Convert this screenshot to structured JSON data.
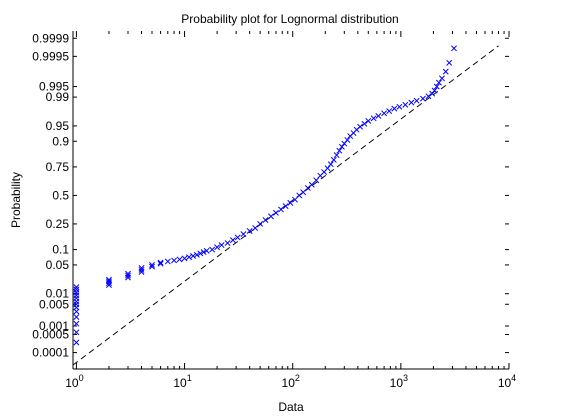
{
  "chart_data": {
    "type": "scatter",
    "title": "Probability plot for Lognormal distribution",
    "xlabel": "Data",
    "ylabel": "Probability",
    "x_scale": "log",
    "y_scale": "normal-probability",
    "xlim": [
      0.93,
      10000
    ],
    "ylim": [
      2e-05,
      0.99995
    ],
    "grid": false,
    "marker": "x",
    "marker_color": "#0000ff",
    "reference_line_color": "#000000",
    "reference_line_style": "dashed",
    "x_tick_labels": [
      {
        "value": 1,
        "base": "10",
        "exp": "0"
      },
      {
        "value": 10,
        "base": "10",
        "exp": "1"
      },
      {
        "value": 100,
        "base": "10",
        "exp": "2"
      },
      {
        "value": 1000,
        "base": "10",
        "exp": "3"
      },
      {
        "value": 10000,
        "base": "10",
        "exp": "4"
      }
    ],
    "y_ticks": [
      0.0001,
      0.0005,
      0.001,
      0.005,
      0.01,
      0.05,
      0.1,
      0.25,
      0.5,
      0.75,
      0.9,
      0.95,
      0.99,
      0.995,
      0.9995,
      0.9999
    ],
    "y_tick_labels": [
      "0.0001",
      "0.0005",
      "0.001",
      "0.005",
      "0.01",
      "0.05",
      "0.1",
      "0.25",
      "0.5",
      "0.75",
      "0.9",
      "0.95",
      "0.99",
      "0.995",
      "0.9995",
      "0.9999"
    ],
    "reference_line": [
      [
        0.93,
        3e-05
      ],
      [
        8000,
        0.9998
      ]
    ],
    "points": [
      [
        1.0,
        0.00025
      ],
      [
        1.0,
        0.0006
      ],
      [
        1.0,
        0.0012
      ],
      [
        1.0,
        0.002
      ],
      [
        1.0,
        0.003
      ],
      [
        1.0,
        0.004
      ],
      [
        1.0,
        0.005
      ],
      [
        1.0,
        0.006
      ],
      [
        1.0,
        0.0075
      ],
      [
        1.0,
        0.009
      ],
      [
        1.0,
        0.011
      ],
      [
        1.0,
        0.013
      ],
      [
        1.0,
        0.015
      ],
      [
        2.0,
        0.017
      ],
      [
        2.0,
        0.019
      ],
      [
        2.0,
        0.021
      ],
      [
        2.0,
        0.023
      ],
      [
        3.0,
        0.026
      ],
      [
        3.0,
        0.029
      ],
      [
        3.0,
        0.032
      ],
      [
        4.0,
        0.035
      ],
      [
        4.0,
        0.039
      ],
      [
        4.0,
        0.043
      ],
      [
        5.0,
        0.046
      ],
      [
        5.0,
        0.05
      ],
      [
        6.0,
        0.053
      ],
      [
        6.0,
        0.056
      ],
      [
        7.0,
        0.059
      ],
      [
        8.0,
        0.062
      ],
      [
        9.0,
        0.065
      ],
      [
        10.0,
        0.068
      ],
      [
        11.0,
        0.072
      ],
      [
        12.0,
        0.076
      ],
      [
        13.0,
        0.08
      ],
      [
        14.0,
        0.085
      ],
      [
        15.0,
        0.09
      ],
      [
        16.0,
        0.095
      ],
      [
        18.0,
        0.1
      ],
      [
        20.0,
        0.11
      ],
      [
        22.0,
        0.12
      ],
      [
        25.0,
        0.13
      ],
      [
        28.0,
        0.145
      ],
      [
        31.0,
        0.16
      ],
      [
        35.0,
        0.18
      ],
      [
        40.0,
        0.2
      ],
      [
        45.0,
        0.22
      ],
      [
        50.0,
        0.25
      ],
      [
        56.0,
        0.28
      ],
      [
        63.0,
        0.31
      ],
      [
        70.0,
        0.34
      ],
      [
        78.0,
        0.37
      ],
      [
        86.0,
        0.4
      ],
      [
        95.0,
        0.43
      ],
      [
        105.0,
        0.46
      ],
      [
        115.0,
        0.5
      ],
      [
        125.0,
        0.53
      ],
      [
        138.0,
        0.57
      ],
      [
        150.0,
        0.6
      ],
      [
        165.0,
        0.64
      ],
      [
        180.0,
        0.68
      ],
      [
        195.0,
        0.71
      ],
      [
        210.0,
        0.74
      ],
      [
        225.0,
        0.77
      ],
      [
        240.0,
        0.8
      ],
      [
        255.0,
        0.83
      ],
      [
        270.0,
        0.855
      ],
      [
        285.0,
        0.875
      ],
      [
        300.0,
        0.89
      ],
      [
        320.0,
        0.905
      ],
      [
        340.0,
        0.92
      ],
      [
        365.0,
        0.93
      ],
      [
        390.0,
        0.94
      ],
      [
        420.0,
        0.948
      ],
      [
        460.0,
        0.955
      ],
      [
        500.0,
        0.961
      ],
      [
        560.0,
        0.966
      ],
      [
        620.0,
        0.97
      ],
      [
        700.0,
        0.974
      ],
      [
        780.0,
        0.977
      ],
      [
        870.0,
        0.98
      ],
      [
        970.0,
        0.982
      ],
      [
        1100.0,
        0.984
      ],
      [
        1250.0,
        0.986
      ],
      [
        1400.0,
        0.9875
      ],
      [
        1600.0,
        0.989
      ],
      [
        1800.0,
        0.9905
      ],
      [
        1950.0,
        0.992
      ],
      [
        2050.0,
        0.9935
      ],
      [
        2150.0,
        0.995
      ],
      [
        2250.0,
        0.9962
      ],
      [
        2400.0,
        0.9972
      ],
      [
        2600.0,
        0.9983
      ],
      [
        2800.0,
        0.99915
      ],
      [
        3100.0,
        0.99975
      ]
    ]
  }
}
